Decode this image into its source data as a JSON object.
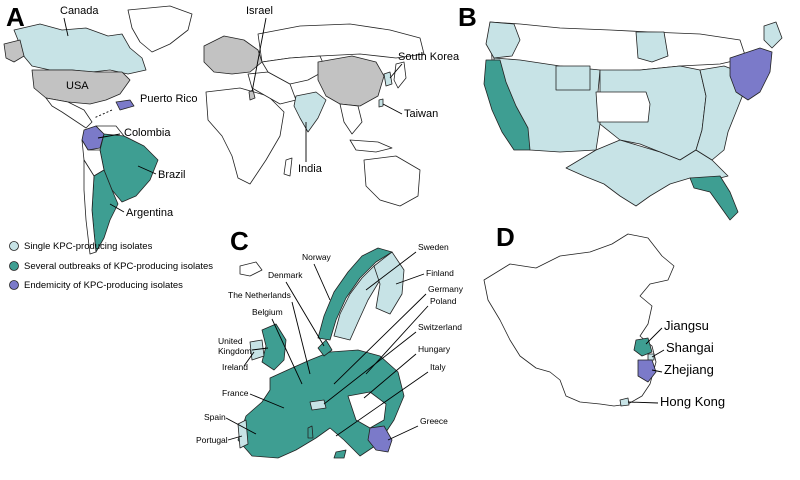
{
  "colors": {
    "single": "#c7e3e6",
    "outbreaks": "#3e9e92",
    "endemic": "#7b7ac9",
    "unknown_gray": "#c2c2c2",
    "none": "#ffffff",
    "outline": "#222222"
  },
  "panels": {
    "a": {
      "letter": "A",
      "labels": {
        "canada": "Canada",
        "usa": "USA",
        "puerto_rico": "Puerto Rico",
        "colombia": "Colombia",
        "brazil": "Brazil",
        "argentina": "Argentina",
        "israel": "Israel",
        "south_korea": "South Korea",
        "taiwan": "Taiwan",
        "india": "India"
      }
    },
    "b": {
      "letter": "B"
    },
    "c": {
      "letter": "C",
      "labels": {
        "norway": "Norway",
        "sweden": "Sweden",
        "denmark": "Denmark",
        "finland": "Finland",
        "netherlands": "The Netherlands",
        "germany": "Germany",
        "belgium": "Belgium",
        "poland": "Poland",
        "switzerland": "Switzerland",
        "uk": "United Kingdom",
        "hungary": "Hungary",
        "ireland": "Ireland",
        "italy": "Italy",
        "france": "France",
        "greece": "Greece",
        "spain": "Spain",
        "portugal": "Portugal"
      }
    },
    "d": {
      "letter": "D",
      "labels": {
        "jiangsu": "Jiangsu",
        "shangai": "Shangai",
        "zhejiang": "Zhejiang",
        "hong_kong": "Hong Kong"
      }
    }
  },
  "legend": {
    "single": "Single KPC-producing isolates",
    "outbreaks": "Several outbreaks of KPC-producing isolates",
    "endemic": "Endemicity of KPC-producing isolates"
  }
}
